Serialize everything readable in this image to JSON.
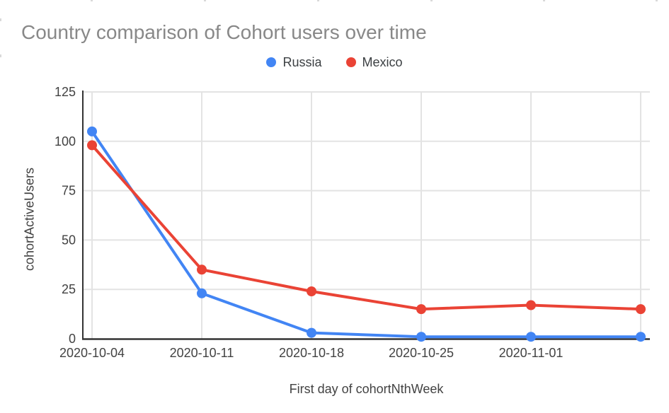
{
  "chart_data": {
    "type": "line",
    "title": "Country comparison of Cohort users over time",
    "xlabel": "First day of cohortNthWeek",
    "ylabel": "cohortActiveUsers",
    "categories": [
      "2020-10-04",
      "2020-10-11",
      "2020-10-18",
      "2020-10-25",
      "2020-11-01",
      ""
    ],
    "series": [
      {
        "name": "Russia",
        "color": "#4285f4",
        "values": [
          105,
          23,
          3,
          1,
          1,
          1
        ]
      },
      {
        "name": "Mexico",
        "color": "#ea4335",
        "values": [
          98,
          35,
          24,
          15,
          17,
          15
        ]
      }
    ],
    "ylim": [
      0,
      125
    ],
    "yticks": [
      0,
      25,
      50,
      75,
      100,
      125
    ],
    "grid": true,
    "legend_position": "top",
    "marker": "circle",
    "styles": {
      "title_color": "#888888",
      "axis_text_color": "#424242",
      "legend_text_color": "#3c4043",
      "grid_color": "#e3e3e3",
      "axis_line_color": "#333333"
    }
  }
}
